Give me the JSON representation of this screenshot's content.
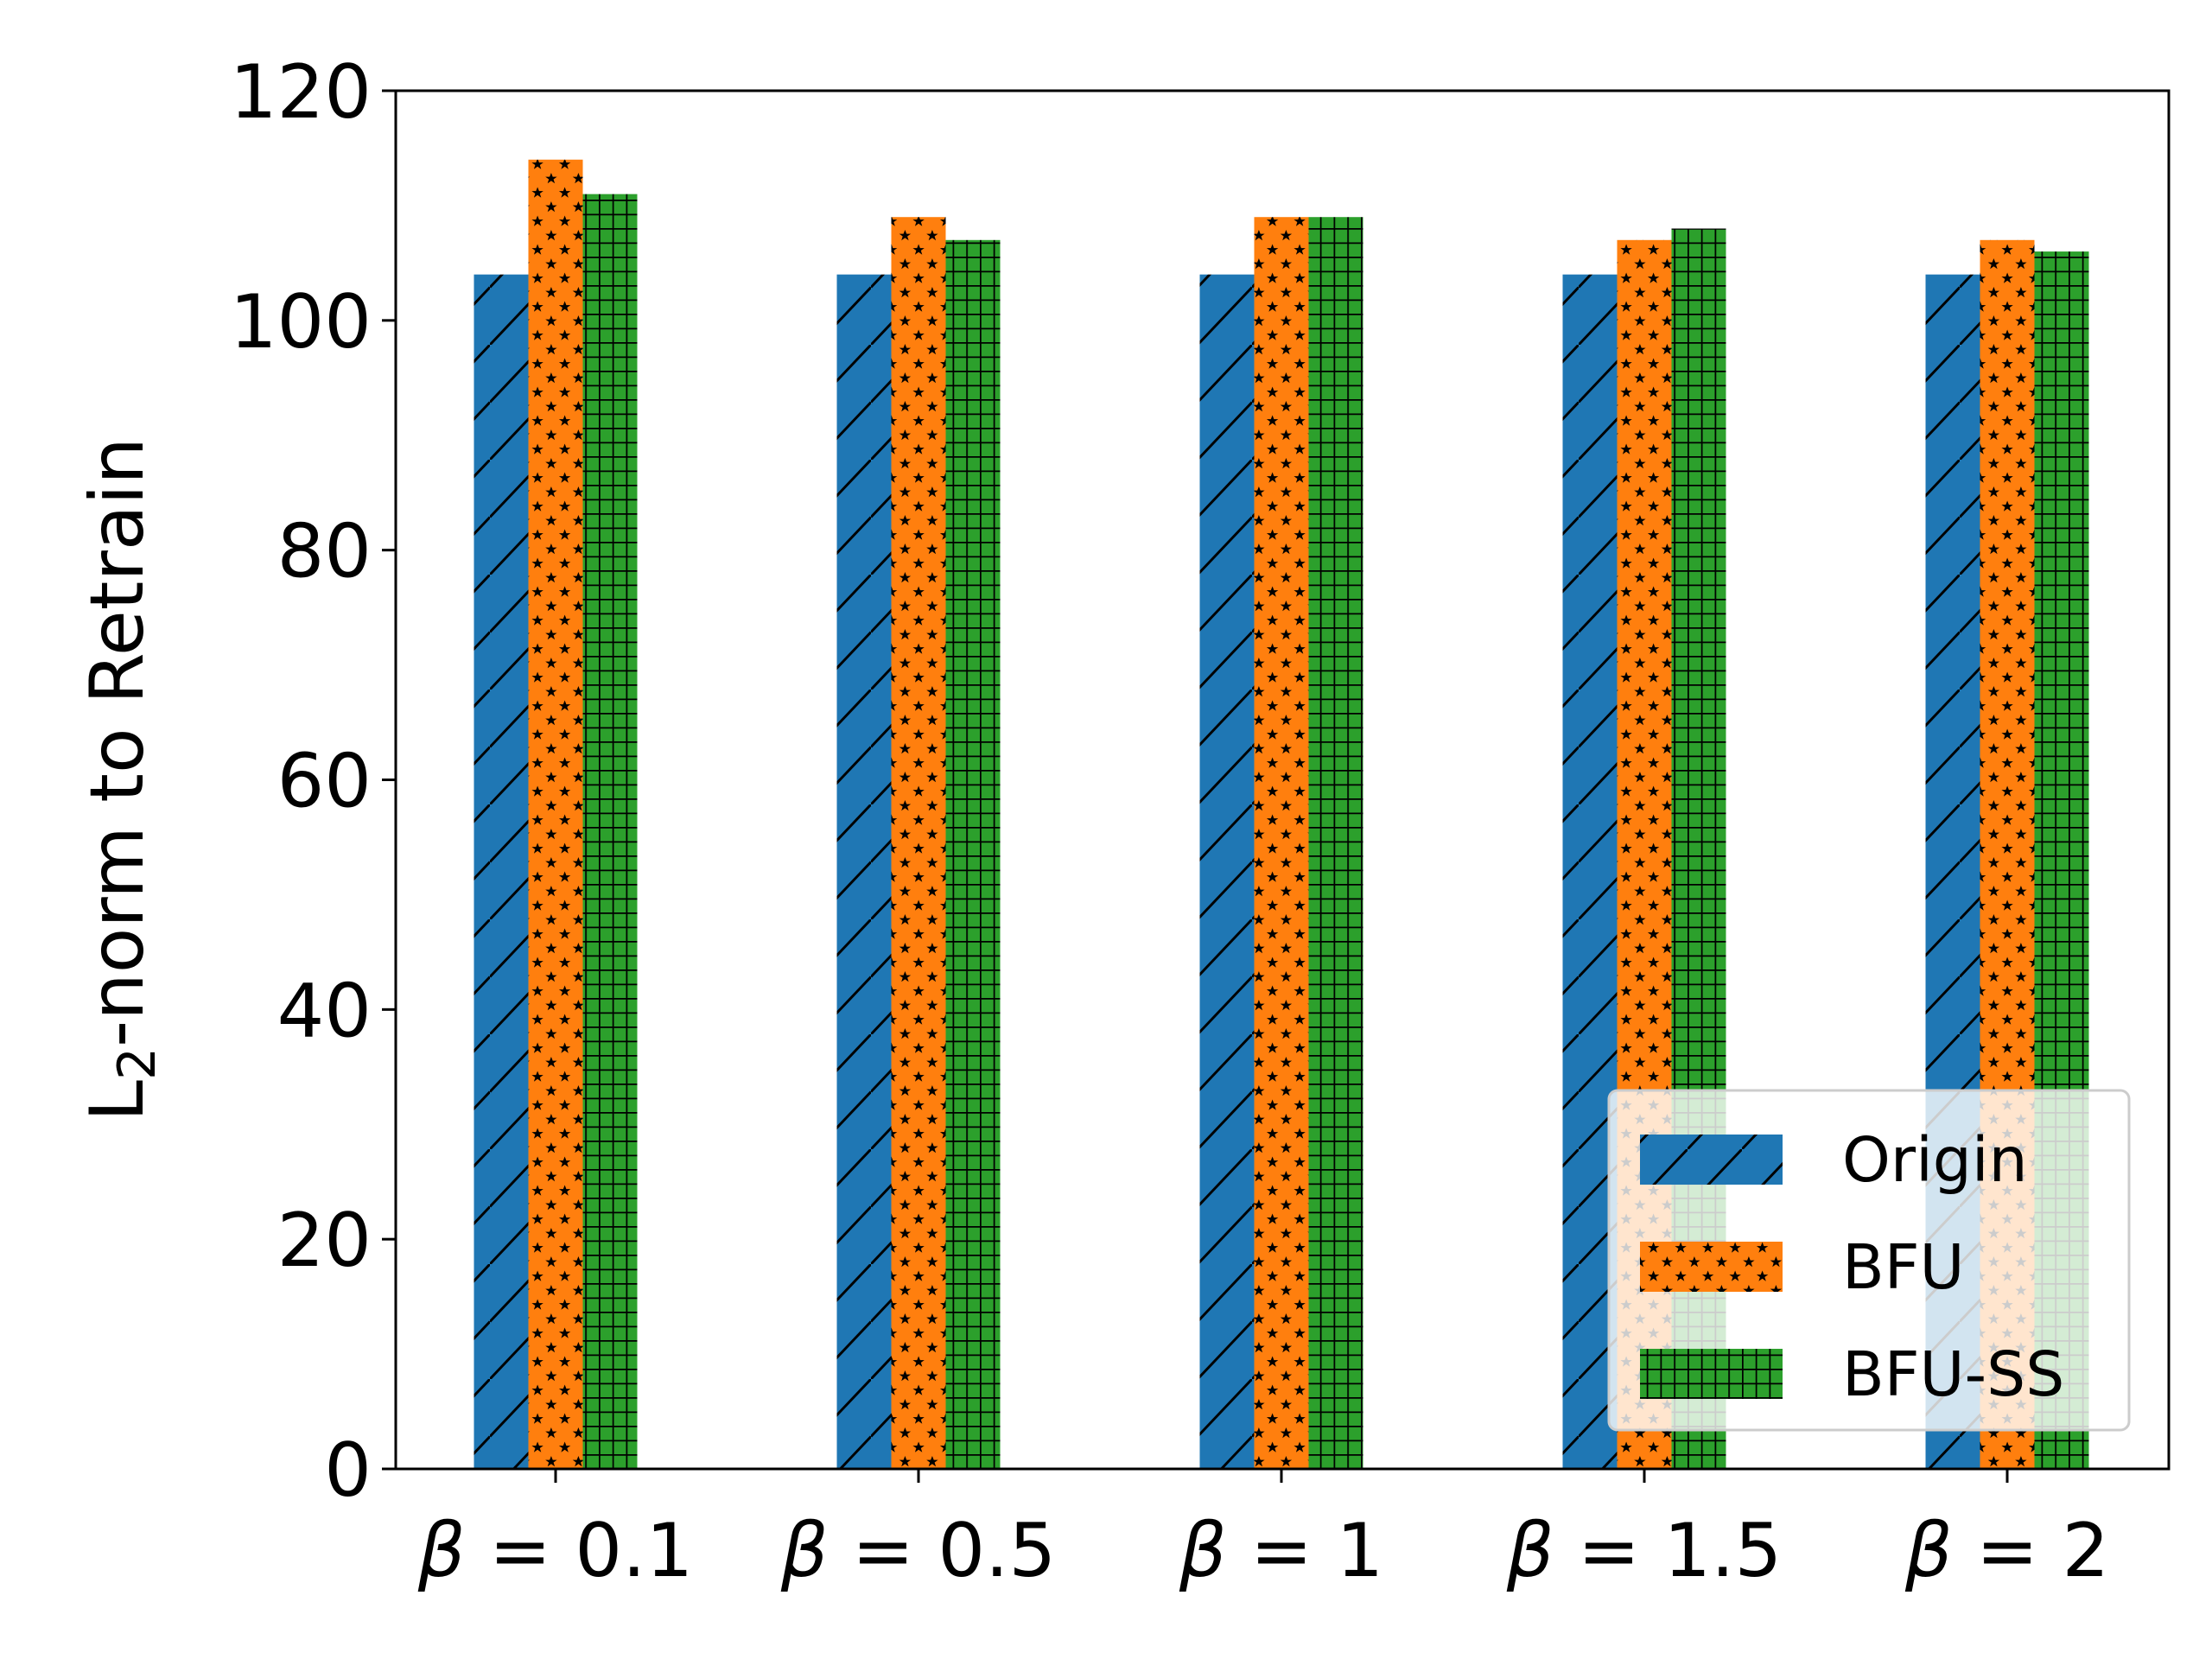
{
  "chart_data": {
    "type": "bar",
    "categories": [
      "β = 0.1",
      "β = 0.5",
      "β = 1",
      "β = 1.5",
      "β = 2"
    ],
    "category_symbol": "β",
    "category_values": [
      "0.1",
      "0.5",
      "1",
      "1.5",
      "2"
    ],
    "ylabel": "L2-norm to Retrain",
    "ylabel_main": "L",
    "ylabel_sub": "2",
    "ylabel_rest": "-norm to Retrain",
    "xlabel": "",
    "ylim": [
      0,
      120
    ],
    "yticks": [
      0,
      20,
      40,
      60,
      80,
      100,
      120
    ],
    "grid": false,
    "legend_position": "lower right",
    "series": [
      {
        "name": "Origin",
        "color": "#1f77b4",
        "hatch": "diagonal",
        "values": [
          104,
          104,
          104,
          104,
          104
        ]
      },
      {
        "name": "BFU",
        "color": "#ff7f0e",
        "hatch": "stars",
        "values": [
          114,
          109,
          109,
          107,
          107
        ]
      },
      {
        "name": "BFU-SS",
        "color": "#2ca02c",
        "hatch": "grid",
        "values": [
          111,
          107,
          109,
          108,
          106
        ]
      }
    ]
  }
}
